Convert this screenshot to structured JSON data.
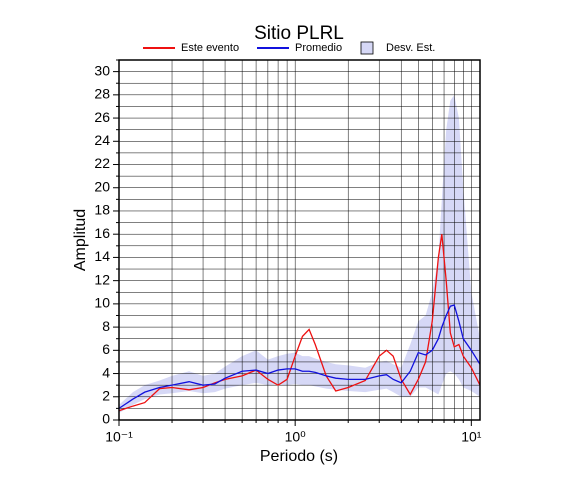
{
  "chart_data": {
    "type": "line",
    "title": "Sitio PLRL",
    "xlabel": "Periodo (s)",
    "ylabel": "Amplitud",
    "log_x": true,
    "grid": true,
    "legend": "top",
    "x": [
      0.1,
      0.12,
      0.14,
      0.17,
      0.2,
      0.25,
      0.3,
      0.35,
      0.4,
      0.5,
      0.6,
      0.7,
      0.8,
      0.9,
      1.0,
      1.1,
      1.2,
      1.3,
      1.5,
      1.7,
      2,
      2.5,
      3,
      3.3,
      3.6,
      4,
      4.5,
      5,
      5.5,
      6,
      6.5,
      6.8,
      7.2,
      7.6,
      8,
      8.5,
      9,
      10,
      11.2
    ],
    "series": [
      {
        "name": "Este evento",
        "color": "#ee1111",
        "values": [
          0.8,
          1.2,
          1.5,
          2.7,
          2.8,
          2.6,
          2.8,
          3.2,
          3.5,
          3.8,
          4.3,
          3.5,
          3.0,
          3.5,
          5.5,
          7.2,
          7.8,
          6.5,
          3.8,
          2.5,
          2.8,
          3.4,
          5.5,
          6.0,
          5.5,
          3.5,
          2.2,
          3.5,
          5.0,
          8.5,
          14,
          16.0,
          12,
          7.5,
          6.3,
          6.5,
          5.5,
          4.5,
          3.0
        ]
      },
      {
        "name": "Promedio",
        "color": "#1111dd",
        "values": [
          1.0,
          1.8,
          2.4,
          2.8,
          3.0,
          3.3,
          3.0,
          3.1,
          3.6,
          4.2,
          4.3,
          4.0,
          4.3,
          4.4,
          4.4,
          4.2,
          4.2,
          4.1,
          3.8,
          3.6,
          3.5,
          3.5,
          3.8,
          3.9,
          3.5,
          3.2,
          4.2,
          5.8,
          5.6,
          6.0,
          7.0,
          8.0,
          9.0,
          9.8,
          9.9,
          8.5,
          7.0,
          6.0,
          4.8
        ]
      },
      {
        "name": "Desv. Est.",
        "color": "#d6d8f6",
        "lower": [
          0.6,
          1.3,
          1.8,
          2.2,
          2.3,
          2.5,
          2.3,
          2.4,
          2.7,
          3.0,
          3.2,
          3.0,
          3.1,
          3.0,
          3.1,
          3.0,
          3.0,
          2.9,
          2.7,
          2.6,
          2.5,
          2.4,
          2.6,
          2.7,
          2.4,
          2.0,
          2.0,
          2.8,
          2.8,
          2.5,
          2.2,
          3.0,
          4.0,
          4.2,
          4.0,
          3.5,
          2.8,
          2.5,
          2.0
        ],
        "upper": [
          1.3,
          2.4,
          3.0,
          3.4,
          3.8,
          4.2,
          3.8,
          4.0,
          4.6,
          5.5,
          6.0,
          5.2,
          5.5,
          5.7,
          5.8,
          5.5,
          5.5,
          5.3,
          5.0,
          4.8,
          4.7,
          4.5,
          5.0,
          5.1,
          4.8,
          4.5,
          6.5,
          8.5,
          9.0,
          11,
          14,
          19,
          25,
          27.5,
          28,
          26,
          20,
          11,
          7
        ]
      }
    ],
    "xlim": [
      0.1,
      11.2
    ],
    "xticks": [
      {
        "value": 0.1,
        "label": "10⁻¹"
      },
      {
        "value": 1,
        "label": "10⁰"
      },
      {
        "value": 10,
        "label": "10¹"
      }
    ],
    "xminor": [
      0.2,
      0.3,
      0.4,
      0.5,
      0.6,
      0.7,
      0.8,
      0.9,
      2,
      3,
      4,
      5,
      6,
      7,
      8,
      9
    ],
    "ylim": [
      0,
      31
    ],
    "yticks": [
      0,
      2,
      4,
      6,
      8,
      10,
      12,
      14,
      16,
      18,
      20,
      22,
      24,
      26,
      28,
      30
    ],
    "yminor": [
      1,
      3,
      5,
      7,
      9,
      11,
      13,
      15,
      17,
      19,
      21,
      23,
      25,
      27,
      29,
      31
    ]
  }
}
